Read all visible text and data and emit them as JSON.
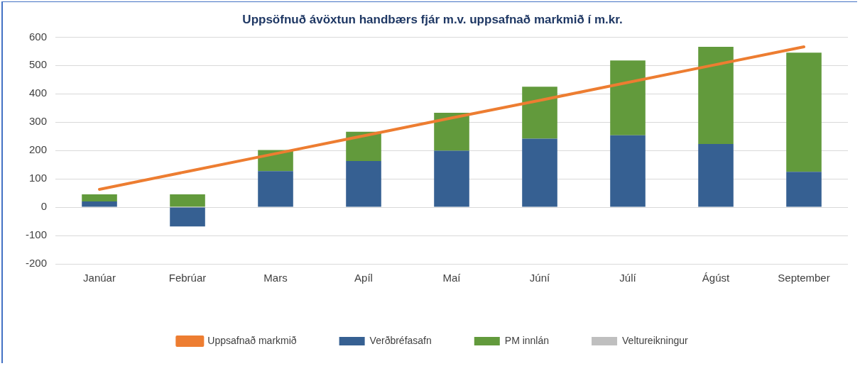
{
  "chart_data": {
    "type": "bar",
    "title": "Uppsöfnuð ávöxtun handbærs fjár m.v. uppsafnað markmið í m.kr.",
    "stacked": true,
    "categories": [
      "Janúar",
      "Febrúar",
      "Mars",
      "Apíl",
      "Maí",
      "Júní",
      "Júlí",
      "Ágúst",
      "September"
    ],
    "series": [
      {
        "name": "Verðbréfasafn",
        "color": "#366092",
        "values": [
          20,
          -68,
          127,
          163,
          199,
          242,
          254,
          223,
          125
        ]
      },
      {
        "name": "PM innlán",
        "color": "#629a3c",
        "values": [
          25,
          45,
          75,
          103,
          134,
          183,
          264,
          343,
          420
        ]
      },
      {
        "name": "Veltureikningur",
        "color": "#bfbfbf",
        "values": [
          0,
          0,
          0,
          0,
          0,
          0,
          0,
          0,
          0
        ]
      },
      {
        "name": "Uppsafnað markmið",
        "type": "line",
        "color": "#ed7d31",
        "values": [
          63,
          126,
          189,
          252,
          315,
          377,
          440,
          503,
          566
        ]
      }
    ],
    "ylim": [
      -200,
      600
    ],
    "yticks": [
      -200,
      -100,
      0,
      100,
      200,
      300,
      400,
      500,
      600
    ],
    "grid": "y",
    "legend": "bottom",
    "marker": "none"
  }
}
